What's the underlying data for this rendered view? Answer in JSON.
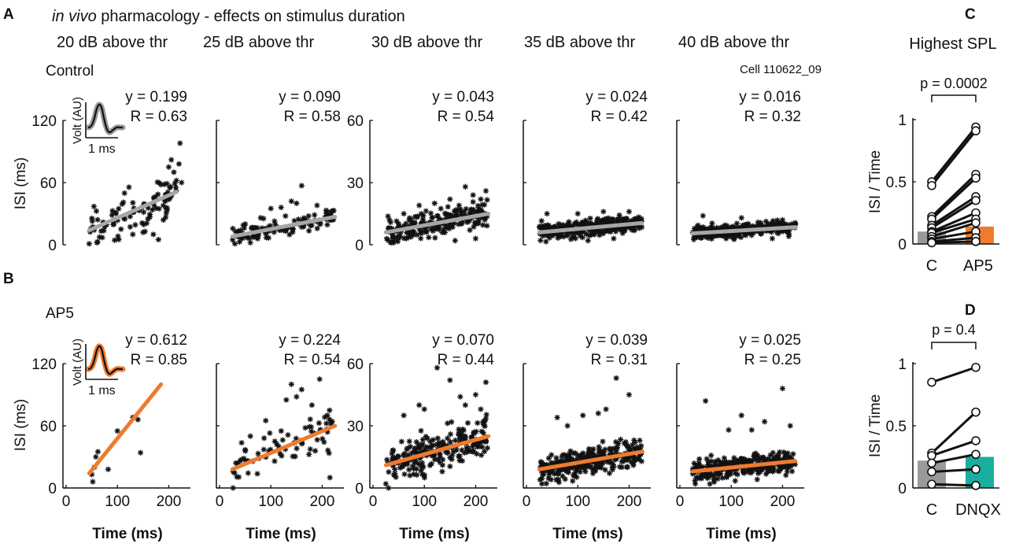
{
  "figure": {
    "title_italic": "in vivo",
    "title_rest": " pharmacology - effects on stimulus duration",
    "panels": [
      "A",
      "B",
      "C",
      "D"
    ],
    "cell_id": "Cell 110622_09",
    "columns": [
      "20 dB above thr",
      "25 dB above thr",
      "30 dB above thr",
      "35 dB above thr",
      "40 dB above thr"
    ],
    "conditions": [
      "Control",
      "AP5"
    ],
    "ylabel": "ISI (ms)",
    "xlabel": "Time (ms)",
    "x_ticks": [
      "0",
      "100",
      "200"
    ],
    "inset": {
      "volt_label": "Volt (AU)",
      "time_label": "1 ms"
    },
    "colors": {
      "control_fit": "#a6a6a6",
      "ap5_fit": "#ef7b2e",
      "dnqx_bar": "#1aaea0",
      "bar_c": "#9a9a9a",
      "marker": "#111111"
    }
  },
  "chart_data": [
    {
      "type": "scatter",
      "condition": "Control",
      "column": "20 dB above thr",
      "fit_label": "y = 0.199",
      "r_label": "R = 0.63",
      "ylim": [
        0,
        120
      ],
      "y_ticks": [
        "0",
        "60",
        "120"
      ],
      "xlim": [
        0,
        230
      ],
      "fit": {
        "x0": 45,
        "y0": 14,
        "x1": 215,
        "y1": 51
      },
      "n_points": 90,
      "spread": 16,
      "y_offset": 0,
      "extra_points": [
        [
          200,
          75
        ],
        [
          205,
          82
        ],
        [
          210,
          70
        ],
        [
          215,
          62
        ],
        [
          220,
          78
        ],
        [
          222,
          98
        ],
        [
          225,
          60
        ],
        [
          185,
          58
        ],
        [
          170,
          10
        ],
        [
          180,
          5
        ],
        [
          195,
          35
        ],
        [
          150,
          12
        ],
        [
          60,
          2
        ],
        [
          45,
          1
        ],
        [
          130,
          10
        ]
      ]
    },
    {
      "type": "scatter",
      "condition": "Control",
      "column": "25 dB above thr",
      "fit_label": "y = 0.090",
      "r_label": "R = 0.58",
      "ylim": [
        0,
        120
      ],
      "y_ticks": [],
      "xlim": [
        0,
        230
      ],
      "fit": {
        "x0": 25,
        "y0": 8,
        "x1": 225,
        "y1": 27
      },
      "n_points": 110,
      "spread": 7,
      "y_offset": 0,
      "extra_points": [
        [
          160,
          57
        ],
        [
          140,
          42
        ],
        [
          150,
          40
        ],
        [
          100,
          35
        ],
        [
          190,
          38
        ],
        [
          210,
          32
        ],
        [
          120,
          36
        ],
        [
          50,
          20
        ],
        [
          80,
          26
        ],
        [
          30,
          1
        ],
        [
          60,
          2
        ]
      ]
    },
    {
      "type": "scatter",
      "condition": "Control",
      "column": "30 dB above thr",
      "fit_label": "y = 0.043",
      "r_label": "R = 0.54",
      "ylim": [
        0,
        60
      ],
      "y_ticks": [
        "0",
        "30",
        "60"
      ],
      "xlim": [
        0,
        230
      ],
      "fit": {
        "x0": 25,
        "y0": 6,
        "x1": 225,
        "y1": 15
      },
      "n_points": 220,
      "spread": 4.5,
      "y_offset": 0,
      "extra_points": [
        [
          180,
          28
        ],
        [
          195,
          24
        ],
        [
          210,
          22
        ],
        [
          220,
          26
        ],
        [
          150,
          22
        ],
        [
          160,
          2
        ],
        [
          200,
          3
        ],
        [
          120,
          20
        ],
        [
          90,
          19
        ],
        [
          40,
          1
        ],
        [
          60,
          15
        ]
      ]
    },
    {
      "type": "scatter",
      "condition": "Control",
      "column": "35 dB above thr",
      "fit_label": "y = 0.024",
      "r_label": "R = 0.42",
      "ylim": [
        0,
        60
      ],
      "y_ticks": [],
      "xlim": [
        0,
        230
      ],
      "fit": {
        "x0": 25,
        "y0": 6,
        "x1": 225,
        "y1": 10.5
      },
      "n_points": 300,
      "spread": 3,
      "y_offset": 0,
      "extra_points": [
        [
          150,
          16
        ],
        [
          100,
          15
        ],
        [
          200,
          16
        ],
        [
          40,
          15
        ],
        [
          170,
          3
        ],
        [
          120,
          2
        ]
      ]
    },
    {
      "type": "scatter",
      "condition": "Control",
      "column": "40 dB above thr",
      "fit_label": "y = 0.016",
      "r_label": "R = 0.32",
      "ylim": [
        0,
        60
      ],
      "y_ticks": [],
      "xlim": [
        0,
        230
      ],
      "fit": {
        "x0": 25,
        "y0": 5.5,
        "x1": 225,
        "y1": 8.5
      },
      "n_points": 320,
      "spread": 2.5,
      "y_offset": 0,
      "extra_points": [
        [
          45,
          14
        ],
        [
          120,
          13
        ],
        [
          200,
          12
        ],
        [
          90,
          3
        ],
        [
          180,
          3
        ]
      ]
    },
    {
      "type": "scatter",
      "condition": "AP5",
      "column": "20 dB above thr",
      "fit_label": "y = 0.612",
      "r_label": "R = 0.85",
      "ylim": [
        0,
        120
      ],
      "y_ticks": [
        "0",
        "60",
        "120"
      ],
      "xlim": [
        0,
        230
      ],
      "fit": {
        "x0": 45,
        "y0": 14,
        "x1": 185,
        "y1": 100
      },
      "n_points": 0,
      "spread": 0,
      "y_offset": 0,
      "extra_points": [
        [
          52,
          6
        ],
        [
          58,
          30
        ],
        [
          62,
          35
        ],
        [
          82,
          18
        ],
        [
          100,
          55
        ],
        [
          130,
          68
        ],
        [
          140,
          66
        ],
        [
          145,
          34
        ],
        [
          55,
          20
        ],
        [
          50,
          13
        ]
      ]
    },
    {
      "type": "scatter",
      "condition": "AP5",
      "column": "25 dB above thr",
      "fit_label": "y = 0.224",
      "r_label": "R = 0.54",
      "ylim": [
        0,
        120
      ],
      "y_ticks": [],
      "xlim": [
        0,
        230
      ],
      "fit": {
        "x0": 25,
        "y0": 18,
        "x1": 225,
        "y1": 60
      },
      "n_points": 70,
      "spread": 16,
      "y_offset": 0,
      "extra_points": [
        [
          140,
          100
        ],
        [
          160,
          95
        ],
        [
          195,
          105
        ],
        [
          130,
          85
        ],
        [
          150,
          88
        ],
        [
          210,
          70
        ],
        [
          215,
          10
        ],
        [
          180,
          80
        ],
        [
          120,
          55
        ],
        [
          60,
          50
        ],
        [
          90,
          65
        ]
      ]
    },
    {
      "type": "scatter",
      "condition": "AP5",
      "column": "30 dB above thr",
      "fit_label": "y = 0.070",
      "r_label": "R = 0.44",
      "ylim": [
        0,
        60
      ],
      "y_ticks": [
        "0",
        "30",
        "60"
      ],
      "xlim": [
        0,
        230
      ],
      "fit": {
        "x0": 25,
        "y0": 11,
        "x1": 225,
        "y1": 25
      },
      "n_points": 220,
      "spread": 7,
      "y_offset": 0,
      "extra_points": [
        [
          125,
          58
        ],
        [
          150,
          52
        ],
        [
          220,
          51
        ],
        [
          200,
          45
        ],
        [
          170,
          44
        ],
        [
          180,
          40
        ],
        [
          100,
          38
        ],
        [
          210,
          38
        ],
        [
          25,
          2
        ],
        [
          90,
          40
        ],
        [
          60,
          35
        ]
      ]
    },
    {
      "type": "scatter",
      "condition": "AP5",
      "column": "35 dB above thr",
      "fit_label": "y = 0.039",
      "r_label": "R = 0.31",
      "ylim": [
        0,
        60
      ],
      "y_ticks": [],
      "xlim": [
        0,
        230
      ],
      "fit": {
        "x0": 25,
        "y0": 9,
        "x1": 225,
        "y1": 17.5
      },
      "n_points": 280,
      "spread": 5,
      "y_offset": 0,
      "extra_points": [
        [
          175,
          53
        ],
        [
          200,
          45
        ],
        [
          155,
          38
        ],
        [
          110,
          35
        ],
        [
          60,
          34
        ],
        [
          140,
          36
        ],
        [
          80,
          30
        ],
        [
          30,
          2
        ]
      ]
    },
    {
      "type": "scatter",
      "condition": "AP5",
      "column": "40 dB above thr",
      "fit_label": "y = 0.025",
      "r_label": "R = 0.25",
      "ylim": [
        0,
        60
      ],
      "y_ticks": [],
      "xlim": [
        0,
        230
      ],
      "fit": {
        "x0": 25,
        "y0": 8,
        "x1": 225,
        "y1": 13
      },
      "n_points": 300,
      "spread": 4,
      "y_offset": 0,
      "extra_points": [
        [
          200,
          48
        ],
        [
          50,
          42
        ],
        [
          120,
          35
        ],
        [
          165,
          32
        ],
        [
          95,
          28
        ],
        [
          215,
          30
        ],
        [
          30,
          2
        ],
        [
          140,
          28
        ]
      ]
    },
    {
      "type": "bar",
      "panel": "C",
      "title": "Highest SPL",
      "ylabel": "ISI / Time",
      "ylim": [
        0,
        1
      ],
      "y_ticks": [
        "0",
        "0.5",
        "1"
      ],
      "categories": [
        "C",
        "AP5"
      ],
      "values": [
        0.1,
        0.14
      ],
      "bar_colors": [
        "#9a9a9a",
        "#ef7b2e"
      ],
      "p_label": "p = 0.0002",
      "pairs": [
        [
          0.5,
          0.94
        ],
        [
          0.47,
          0.91
        ],
        [
          0.22,
          0.56
        ],
        [
          0.2,
          0.53
        ],
        [
          0.15,
          0.38
        ],
        [
          0.13,
          0.35
        ],
        [
          0.1,
          0.25
        ],
        [
          0.09,
          0.2
        ],
        [
          0.06,
          0.17
        ],
        [
          0.04,
          0.1
        ],
        [
          0.02,
          0.05
        ],
        [
          0.01,
          0.02
        ]
      ]
    },
    {
      "type": "bar",
      "panel": "D",
      "title": "",
      "ylabel": "ISI / Time",
      "ylim": [
        0,
        1
      ],
      "y_ticks": [
        "0",
        "0.5",
        "1"
      ],
      "categories": [
        "C",
        "DNQX"
      ],
      "values": [
        0.22,
        0.25
      ],
      "bar_colors": [
        "#9a9a9a",
        "#1aaea0"
      ],
      "p_label": "p = 0.4",
      "pairs": [
        [
          0.85,
          0.97
        ],
        [
          0.28,
          0.61
        ],
        [
          0.26,
          0.38
        ],
        [
          0.2,
          0.27
        ],
        [
          0.13,
          0.15
        ],
        [
          0.03,
          0.02
        ]
      ]
    }
  ]
}
